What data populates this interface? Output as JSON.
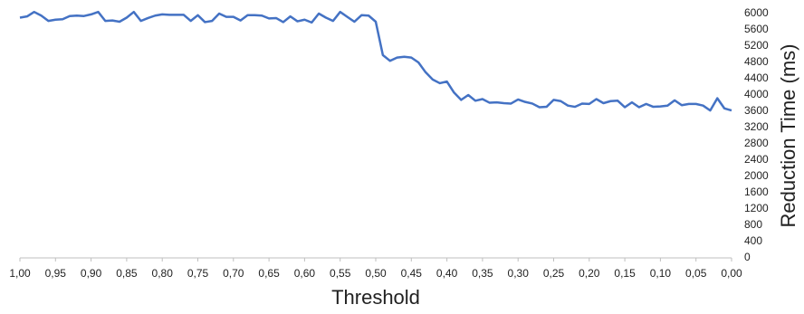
{
  "chart_data": {
    "type": "line",
    "xlabel": "Threshold",
    "ylabel": "Reduction Time (ms)",
    "x": [
      1.0,
      0.99,
      0.98,
      0.97,
      0.96,
      0.95,
      0.94,
      0.93,
      0.92,
      0.91,
      0.9,
      0.89,
      0.88,
      0.87,
      0.86,
      0.85,
      0.84,
      0.83,
      0.82,
      0.81,
      0.8,
      0.79,
      0.78,
      0.77,
      0.76,
      0.75,
      0.74,
      0.73,
      0.72,
      0.71,
      0.7,
      0.69,
      0.68,
      0.67,
      0.66,
      0.65,
      0.64,
      0.63,
      0.62,
      0.61,
      0.6,
      0.59,
      0.58,
      0.57,
      0.56,
      0.55,
      0.54,
      0.53,
      0.52,
      0.51,
      0.5,
      0.49,
      0.48,
      0.47,
      0.46,
      0.45,
      0.44,
      0.43,
      0.42,
      0.41,
      0.4,
      0.39,
      0.38,
      0.37,
      0.36,
      0.35,
      0.34,
      0.33,
      0.32,
      0.31,
      0.3,
      0.29,
      0.28,
      0.27,
      0.26,
      0.25,
      0.24,
      0.23,
      0.22,
      0.21,
      0.2,
      0.19,
      0.18,
      0.17,
      0.16,
      0.15,
      0.14,
      0.13,
      0.12,
      0.11,
      0.1,
      0.09,
      0.08,
      0.07,
      0.06,
      0.05,
      0.04,
      0.03,
      0.02,
      0.01,
      0.0
    ],
    "series": [
      {
        "name": "Reduction Time",
        "color": "#4472c4",
        "values": [
          5900,
          5930,
          6040,
          5950,
          5820,
          5850,
          5860,
          5940,
          5950,
          5940,
          5980,
          6040,
          5820,
          5830,
          5800,
          5900,
          6040,
          5820,
          5890,
          5950,
          5980,
          5970,
          5970,
          5970,
          5820,
          5960,
          5790,
          5820,
          6000,
          5920,
          5920,
          5830,
          5960,
          5960,
          5950,
          5880,
          5890,
          5790,
          5930,
          5810,
          5850,
          5780,
          6000,
          5900,
          5820,
          6040,
          5920,
          5800,
          5960,
          5950,
          5800,
          4980,
          4840,
          4920,
          4940,
          4920,
          4800,
          4560,
          4380,
          4290,
          4330,
          4060,
          3880,
          4000,
          3860,
          3900,
          3810,
          3820,
          3800,
          3790,
          3890,
          3830,
          3790,
          3700,
          3710,
          3880,
          3850,
          3740,
          3710,
          3790,
          3780,
          3900,
          3800,
          3850,
          3860,
          3700,
          3820,
          3700,
          3780,
          3710,
          3720,
          3740,
          3870,
          3750,
          3780,
          3780,
          3740,
          3620,
          3920,
          3670,
          3620
        ]
      }
    ],
    "xlim": [
      1,
      0
    ],
    "xticks": [
      {
        "value": 1,
        "label": "1,00"
      },
      {
        "value": 0.95,
        "label": "0,95"
      },
      {
        "value": 0.9,
        "label": "0,90"
      },
      {
        "value": 0.85,
        "label": "0,85"
      },
      {
        "value": 0.8,
        "label": "0,80"
      },
      {
        "value": 0.75,
        "label": "0,75"
      },
      {
        "value": 0.7,
        "label": "0,70"
      },
      {
        "value": 0.65,
        "label": "0,65"
      },
      {
        "value": 0.6,
        "label": "0,60"
      },
      {
        "value": 0.55,
        "label": "0,55"
      },
      {
        "value": 0.5,
        "label": "0,50"
      },
      {
        "value": 0.45,
        "label": "0,45"
      },
      {
        "value": 0.4,
        "label": "0,40"
      },
      {
        "value": 0.35,
        "label": "0,35"
      },
      {
        "value": 0.3,
        "label": "0,30"
      },
      {
        "value": 0.25,
        "label": "0,25"
      },
      {
        "value": 0.2,
        "label": "0,20"
      },
      {
        "value": 0.15,
        "label": "0,15"
      },
      {
        "value": 0.1,
        "label": "0,10"
      },
      {
        "value": 0.05,
        "label": "0,05"
      },
      {
        "value": 0,
        "label": "0,00"
      }
    ],
    "ylim": [
      0,
      6000
    ],
    "yticks": [
      0,
      400,
      800,
      1200,
      1600,
      2000,
      2400,
      2800,
      3200,
      3600,
      4000,
      4400,
      4800,
      5200,
      5600,
      6000
    ],
    "y_axis_side": "right",
    "grid": false
  }
}
